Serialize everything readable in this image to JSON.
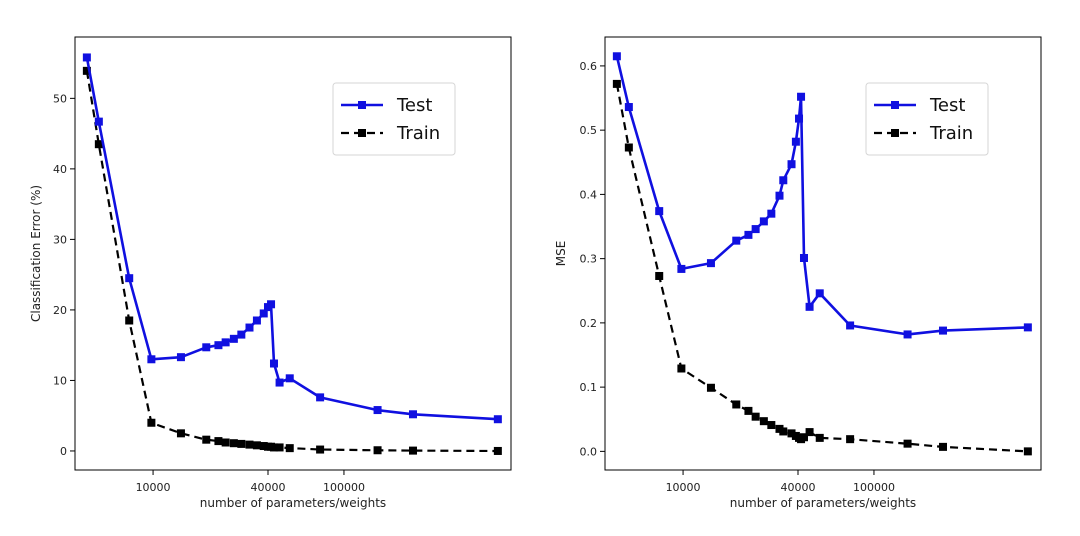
{
  "chart_data": [
    {
      "type": "line",
      "id": "left",
      "xlabel": "number of parameters/weights",
      "ylabel": "Classification Error (%)",
      "x_scale": "log",
      "xlim": [
        3900,
        750000
      ],
      "ylim": [
        -2.7,
        58.7
      ],
      "x_ticks": [
        {
          "value": 10000,
          "label": "10000"
        },
        {
          "value": 40000,
          "label": "40000"
        },
        {
          "value": 100000,
          "label": "100000"
        }
      ],
      "y_ticks": [
        {
          "value": 0,
          "label": "0"
        },
        {
          "value": 10,
          "label": "10"
        },
        {
          "value": 20,
          "label": "20"
        },
        {
          "value": 30,
          "label": "30"
        },
        {
          "value": 40,
          "label": "40"
        },
        {
          "value": 50,
          "label": "50"
        }
      ],
      "legend": {
        "position": "upper-right",
        "entries": [
          "Test",
          "Train"
        ]
      },
      "series": [
        {
          "name": "Test",
          "color": "#1010e0",
          "style": "solid",
          "marker": "square",
          "points": [
            [
              4500,
              55.8
            ],
            [
              5200,
              46.7
            ],
            [
              7500,
              24.5
            ],
            [
              9800,
              13.0
            ],
            [
              14000,
              13.3
            ],
            [
              19000,
              14.7
            ],
            [
              22000,
              15.0
            ],
            [
              24000,
              15.4
            ],
            [
              26500,
              15.9
            ],
            [
              29000,
              16.5
            ],
            [
              32000,
              17.5
            ],
            [
              35000,
              18.5
            ],
            [
              38000,
              19.5
            ],
            [
              40000,
              20.4
            ],
            [
              41500,
              20.8
            ],
            [
              43000,
              12.4
            ],
            [
              46000,
              9.7
            ],
            [
              52000,
              10.3
            ],
            [
              75000,
              7.6
            ],
            [
              150000,
              5.8
            ],
            [
              230000,
              5.2
            ],
            [
              640000,
              4.5
            ]
          ]
        },
        {
          "name": "Train",
          "color": "#000000",
          "style": "dashed",
          "marker": "square",
          "points": [
            [
              4500,
              53.9
            ],
            [
              5200,
              43.5
            ],
            [
              7500,
              18.5
            ],
            [
              9800,
              4.0
            ],
            [
              14000,
              2.5
            ],
            [
              19000,
              1.6
            ],
            [
              22000,
              1.4
            ],
            [
              24000,
              1.2
            ],
            [
              26500,
              1.1
            ],
            [
              29000,
              1.0
            ],
            [
              32000,
              0.9
            ],
            [
              35000,
              0.8
            ],
            [
              38000,
              0.7
            ],
            [
              40000,
              0.6
            ],
            [
              41500,
              0.6
            ],
            [
              43000,
              0.5
            ],
            [
              46000,
              0.5
            ],
            [
              52000,
              0.4
            ],
            [
              75000,
              0.2
            ],
            [
              150000,
              0.1
            ],
            [
              230000,
              0.05
            ],
            [
              640000,
              0.0
            ]
          ]
        }
      ]
    },
    {
      "type": "line",
      "id": "right",
      "xlabel": "number of parameters/weights",
      "ylabel": "MSE",
      "x_scale": "log",
      "xlim": [
        3900,
        750000
      ],
      "ylim": [
        -0.029,
        0.645
      ],
      "x_ticks": [
        {
          "value": 10000,
          "label": "10000"
        },
        {
          "value": 40000,
          "label": "40000"
        },
        {
          "value": 100000,
          "label": "100000"
        }
      ],
      "y_ticks": [
        {
          "value": 0,
          "label": "0.0"
        },
        {
          "value": 0.1,
          "label": "0.1"
        },
        {
          "value": 0.2,
          "label": "0.2"
        },
        {
          "value": 0.3,
          "label": "0.3"
        },
        {
          "value": 0.4,
          "label": "0.4"
        },
        {
          "value": 0.5,
          "label": "0.5"
        },
        {
          "value": 0.6,
          "label": "0.6"
        }
      ],
      "legend": {
        "position": "upper-right",
        "entries": [
          "Test",
          "Train"
        ]
      },
      "series": [
        {
          "name": "Test",
          "color": "#1010e0",
          "style": "solid",
          "marker": "square",
          "points": [
            [
              4500,
              0.615
            ],
            [
              5200,
              0.536
            ],
            [
              7500,
              0.374
            ],
            [
              9800,
              0.284
            ],
            [
              14000,
              0.293
            ],
            [
              19000,
              0.328
            ],
            [
              22000,
              0.337
            ],
            [
              24000,
              0.346
            ],
            [
              26500,
              0.358
            ],
            [
              29000,
              0.37
            ],
            [
              32000,
              0.398
            ],
            [
              33500,
              0.422
            ],
            [
              37000,
              0.447
            ],
            [
              39000,
              0.482
            ],
            [
              40500,
              0.518
            ],
            [
              41500,
              0.552
            ],
            [
              43000,
              0.301
            ],
            [
              46000,
              0.225
            ],
            [
              52000,
              0.246
            ],
            [
              75000,
              0.196
            ],
            [
              150000,
              0.182
            ],
            [
              230000,
              0.188
            ],
            [
              640000,
              0.193
            ]
          ]
        },
        {
          "name": "Train",
          "color": "#000000",
          "style": "dashed",
          "marker": "square",
          "points": [
            [
              4500,
              0.572
            ],
            [
              5200,
              0.473
            ],
            [
              7500,
              0.273
            ],
            [
              9800,
              0.129
            ],
            [
              14000,
              0.099
            ],
            [
              19000,
              0.073
            ],
            [
              22000,
              0.063
            ],
            [
              24000,
              0.054
            ],
            [
              26500,
              0.047
            ],
            [
              29000,
              0.041
            ],
            [
              32000,
              0.035
            ],
            [
              33500,
              0.031
            ],
            [
              37000,
              0.028
            ],
            [
              39000,
              0.024
            ],
            [
              40500,
              0.021
            ],
            [
              41500,
              0.019
            ],
            [
              43000,
              0.022
            ],
            [
              46000,
              0.03
            ],
            [
              52000,
              0.021
            ],
            [
              75000,
              0.019
            ],
            [
              150000,
              0.012
            ],
            [
              230000,
              0.007
            ],
            [
              640000,
              0.0
            ]
          ]
        }
      ]
    }
  ]
}
